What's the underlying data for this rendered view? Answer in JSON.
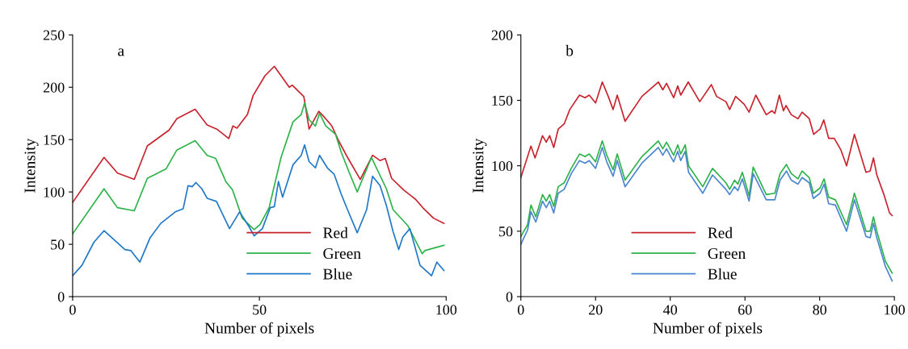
{
  "chart_data": [
    {
      "type": "line",
      "annotations": [
        "a"
      ],
      "xlabel": "Number of pixels",
      "ylabel": "Intensity",
      "xlim": [
        0,
        100
      ],
      "xticks": [
        0,
        50,
        100
      ],
      "ylim": [
        0,
        250
      ],
      "yticks": [
        0,
        50,
        100,
        150,
        200,
        250
      ],
      "legend": "bottom",
      "series": [
        {
          "name": "Red",
          "color": "#c8232c",
          "x": [
            0,
            8.4,
            12,
            16.5,
            20,
            25.8,
            27.9,
            32.8,
            36,
            38.6,
            41.8,
            42.9,
            44,
            46.8,
            48.3,
            51.5,
            54,
            58,
            58.8,
            61.9,
            63.3,
            65.9,
            67.5,
            69.4,
            71.2,
            73.6,
            77,
            80.3,
            82.3,
            83.7,
            85.4,
            88.6,
            91.8,
            94,
            96.6,
            99.4
          ],
          "values": [
            90,
            133,
            118,
            112,
            144,
            159,
            170,
            179,
            164,
            160,
            151,
            163,
            161,
            174,
            192,
            211,
            220,
            200,
            202,
            191,
            160,
            177,
            171,
            163,
            149,
            133,
            112,
            135,
            130,
            132,
            113,
            102,
            93,
            84,
            75,
            70
          ]
        },
        {
          "name": "Green",
          "color": "#2db34a",
          "x": [
            0,
            8.4,
            12,
            16.5,
            20,
            25,
            27.9,
            32.8,
            36,
            38.3,
            41,
            42.8,
            45.4,
            48.6,
            50.2,
            52.6,
            55.8,
            59,
            61.2,
            62.1,
            63.3,
            65,
            66.1,
            67.8,
            70.4,
            71.9,
            74,
            76.2,
            80,
            84,
            85.8,
            89.7,
            93.6,
            94.3,
            99.4
          ],
          "values": [
            60,
            103,
            85,
            82,
            113,
            122,
            140,
            149,
            135,
            132,
            110,
            102,
            75,
            64,
            69,
            85,
            133,
            167,
            174,
            185,
            169,
            163,
            175,
            163,
            155,
            138,
            119,
            100,
            133,
            103,
            83,
            68,
            41,
            44,
            49
          ]
        },
        {
          "name": "Blue",
          "color": "#1f78c8",
          "x": [
            0,
            2.5,
            5.7,
            8.4,
            14,
            15.6,
            18,
            20.7,
            23.6,
            27.5,
            29.6,
            30.9,
            32,
            33,
            34.6,
            36,
            38.5,
            42,
            44.7,
            47.2,
            48.6,
            50.8,
            52.9,
            54,
            55.1,
            56.2,
            59,
            61.2,
            62.1,
            63.3,
            65,
            66.1,
            68.2,
            70,
            71.9,
            73.6,
            76.2,
            78.7,
            80.3,
            82.3,
            84,
            85.8,
            87.3,
            88.4,
            90.3,
            93,
            96.1,
            97.5,
            99.4
          ],
          "values": [
            20,
            30,
            52,
            63,
            45,
            44,
            33,
            56,
            70,
            81,
            84,
            106,
            105,
            109,
            103,
            94,
            91,
            65,
            81,
            67,
            58,
            65,
            85,
            86,
            110,
            95,
            126,
            135,
            145,
            129,
            123,
            135,
            123,
            117,
            98,
            83,
            61,
            83,
            115,
            106,
            87,
            62,
            45,
            57,
            65,
            30,
            20,
            33,
            25
          ]
        }
      ]
    },
    {
      "type": "line",
      "annotations": [
        "b"
      ],
      "xlabel": "Number of pixels",
      "ylabel": "Intensity",
      "xlim": [
        0,
        100
      ],
      "xticks": [
        0,
        20,
        40,
        60,
        80,
        100
      ],
      "ylim": [
        0,
        200
      ],
      "yticks": [
        0,
        50,
        100,
        150,
        200
      ],
      "legend": "bottom",
      "series": [
        {
          "name": "Red",
          "color": "#c8232c",
          "x": [
            0,
            2.7,
            3.8,
            5.8,
            6.8,
            7.7,
            8.8,
            10,
            11.6,
            13.1,
            15.7,
            17.2,
            18.3,
            20,
            21.8,
            23.4,
            24.7,
            25.8,
            27.9,
            32.4,
            36.8,
            38,
            39,
            40.9,
            42,
            42.8,
            44.8,
            47.9,
            51,
            52.4,
            54.9,
            55.9,
            57.5,
            59.8,
            61.1,
            62.9,
            65.7,
            67.2,
            68,
            69.2,
            70.3,
            71,
            72.4,
            74.2,
            75.3,
            77.2,
            78.4,
            80.1,
            81.1,
            82.4,
            83.9,
            85.7,
            87.2,
            89.3,
            90.9,
            92.4,
            93.5,
            94.4,
            95.3,
            97.2,
            98.7,
            99.4
          ],
          "values": [
            91,
            115,
            106,
            123,
            118,
            123,
            114,
            128,
            132,
            143,
            154,
            152,
            154,
            148,
            164,
            153,
            143,
            154,
            134,
            153,
            164,
            158,
            163,
            152,
            161,
            154,
            164,
            149,
            162,
            153,
            149,
            143,
            153,
            147,
            141,
            154,
            139,
            142,
            140,
            154,
            142,
            146,
            139,
            136,
            141,
            136,
            124,
            128,
            135,
            121,
            121,
            112,
            100,
            124,
            109,
            95,
            96,
            106,
            93,
            78,
            64,
            62
          ]
        },
        {
          "name": "Green",
          "color": "#2db34a",
          "x": [
            0,
            1.8,
            2.7,
            4,
            5.8,
            6.8,
            7.7,
            8.8,
            10,
            11.6,
            13.5,
            15.7,
            17.2,
            18.3,
            20,
            21.8,
            23,
            24.7,
            25.8,
            27.9,
            32.4,
            36.8,
            38,
            39,
            40.9,
            42,
            42.8,
            44,
            44.9,
            48.7,
            51.3,
            54.9,
            55.9,
            57.2,
            58.1,
            59.3,
            61.1,
            62.2,
            65.7,
            68,
            69.4,
            71.1,
            72.4,
            74.2,
            75.3,
            77.2,
            78.3,
            80.1,
            81.2,
            82.4,
            84.2,
            87.2,
            89.3,
            92.4,
            93.5,
            94.4,
            95.3,
            97.6,
            99.4
          ],
          "values": [
            46,
            55,
            70,
            61,
            78,
            73,
            78,
            69,
            84,
            87,
            98,
            109,
            107,
            109,
            103,
            119,
            108,
            97,
            109,
            89,
            107,
            119,
            113,
            118,
            108,
            116,
            109,
            116,
            100,
            84,
            98,
            87,
            82,
            89,
            86,
            95,
            77,
            99,
            78,
            79,
            94,
            101,
            94,
            90,
            96,
            91,
            79,
            83,
            90,
            76,
            74,
            55,
            79,
            50,
            50,
            61,
            50,
            27,
            18
          ]
        },
        {
          "name": "Blue",
          "color": "#4a86d0",
          "x": [
            0,
            1.8,
            2.7,
            4,
            5.8,
            6.8,
            7.7,
            8.8,
            10,
            11.6,
            13.5,
            15.7,
            17.2,
            18.3,
            20,
            21.8,
            23,
            24.7,
            25.8,
            27.9,
            32.4,
            36.8,
            38,
            39,
            40.9,
            42,
            42.8,
            44,
            44.9,
            48.7,
            51.3,
            54.9,
            55.9,
            57.2,
            58.1,
            59.3,
            61.1,
            62.2,
            65.7,
            68,
            69.4,
            71.1,
            72.4,
            74.2,
            75.3,
            77.2,
            78.3,
            80.1,
            81.2,
            82.4,
            84.2,
            87.2,
            89.3,
            92.4,
            93.5,
            94.4,
            95.3,
            97.6,
            99.4
          ],
          "values": [
            40,
            51,
            65,
            57,
            73,
            68,
            73,
            64,
            79,
            82,
            94,
            104,
            102,
            104,
            98,
            114,
            103,
            92,
            104,
            84,
            102,
            114,
            108,
            113,
            103,
            111,
            104,
            111,
            95,
            79,
            93,
            82,
            78,
            84,
            81,
            90,
            73,
            94,
            74,
            74,
            89,
            96,
            89,
            86,
            91,
            87,
            75,
            79,
            86,
            71,
            70,
            50,
            74,
            46,
            45,
            56,
            45,
            23,
            12
          ]
        }
      ]
    }
  ]
}
